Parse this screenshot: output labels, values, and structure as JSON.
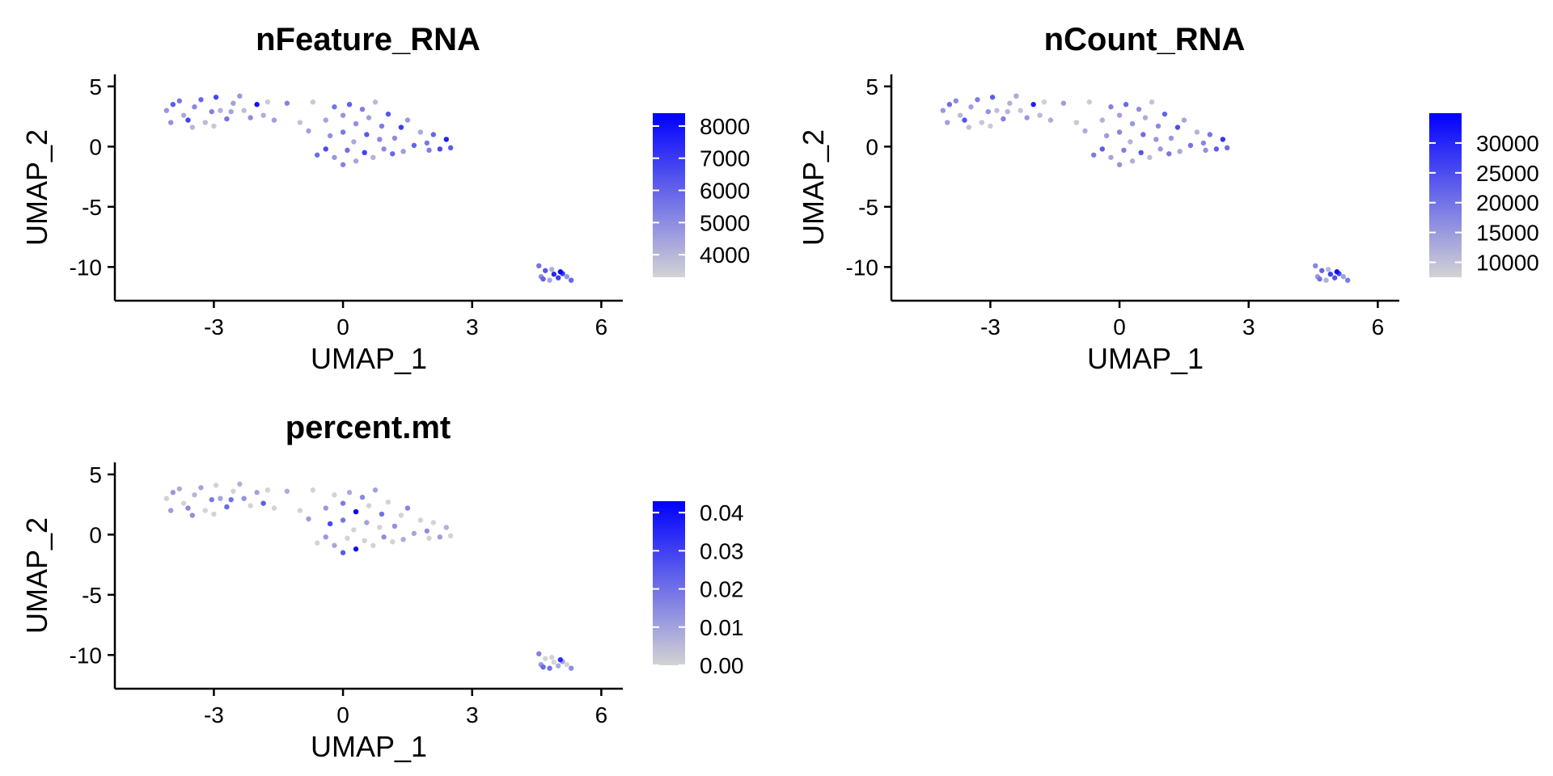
{
  "colors": {
    "low": "#d3d3d3",
    "high": "#0000ff",
    "axis": "#000000"
  },
  "chart_data": [
    {
      "type": "scatter",
      "title": "nFeature_RNA",
      "xlabel": "UMAP_1",
      "ylabel": "UMAP_2",
      "xlim": [
        -5.3,
        6.5
      ],
      "ylim": [
        -12.8,
        6.0
      ],
      "xticks": [
        -3,
        0,
        3,
        6
      ],
      "yticks": [
        5,
        0,
        -5,
        -10
      ],
      "grid": false,
      "legend": {
        "position": "right",
        "min": 3300,
        "max": 8400,
        "ticks": [
          4000,
          5000,
          6000,
          7000,
          8000
        ]
      },
      "points": [
        [
          -4.1,
          3.0,
          4800
        ],
        [
          -3.95,
          3.5,
          6200
        ],
        [
          -3.8,
          3.8,
          5500
        ],
        [
          -3.7,
          2.6,
          4300
        ],
        [
          -3.6,
          2.2,
          6800
        ],
        [
          -3.45,
          3.3,
          5100
        ],
        [
          -3.3,
          3.9,
          5900
        ],
        [
          -3.2,
          2.0,
          3900
        ],
        [
          -3.05,
          2.9,
          5300
        ],
        [
          -2.95,
          4.1,
          6700
        ],
        [
          -2.85,
          3.0,
          4100
        ],
        [
          -2.7,
          2.3,
          5600
        ],
        [
          -2.55,
          3.6,
          4500
        ],
        [
          -2.4,
          4.2,
          4700
        ],
        [
          -2.3,
          3.0,
          3800
        ],
        [
          -2.15,
          2.4,
          5000
        ],
        [
          -2.0,
          3.5,
          8000
        ],
        [
          -1.85,
          2.6,
          4200
        ],
        [
          -1.6,
          2.2,
          4600
        ],
        [
          -1.3,
          3.6,
          5200
        ],
        [
          -3.5,
          1.6,
          4000
        ],
        [
          -3.0,
          1.7,
          3600
        ],
        [
          -2.6,
          2.9,
          4400
        ],
        [
          -1.75,
          3.7,
          3500
        ],
        [
          -4.0,
          2.0,
          4900
        ],
        [
          -0.7,
          3.7,
          3600
        ],
        [
          -0.4,
          2.2,
          4400
        ],
        [
          -0.2,
          3.3,
          5600
        ],
        [
          0.0,
          2.6,
          4800
        ],
        [
          0.15,
          3.5,
          6100
        ],
        [
          0.3,
          1.9,
          4900
        ],
        [
          0.45,
          3.1,
          5300
        ],
        [
          0.6,
          2.4,
          4500
        ],
        [
          0.75,
          3.7,
          3900
        ],
        [
          0.9,
          1.7,
          5400
        ],
        [
          1.05,
          2.7,
          6300
        ],
        [
          1.2,
          0.7,
          5000
        ],
        [
          1.35,
          1.6,
          7000
        ],
        [
          1.5,
          2.2,
          4700
        ],
        [
          1.65,
          0.1,
          6000
        ],
        [
          1.8,
          1.2,
          4300
        ],
        [
          1.95,
          0.3,
          5500
        ],
        [
          2.1,
          1.0,
          5900
        ],
        [
          2.25,
          -0.2,
          6600
        ],
        [
          2.4,
          0.6,
          7600
        ],
        [
          2.5,
          -0.1,
          6200
        ],
        [
          -0.6,
          -0.7,
          5800
        ],
        [
          -0.4,
          -0.2,
          6600
        ],
        [
          -0.2,
          -0.9,
          4700
        ],
        [
          0.0,
          -1.5,
          5200
        ],
        [
          0.1,
          -0.3,
          5700
        ],
        [
          0.3,
          -1.2,
          4400
        ],
        [
          0.5,
          -0.5,
          6800
        ],
        [
          0.7,
          -0.9,
          4100
        ],
        [
          0.95,
          -0.2,
          5000
        ],
        [
          1.15,
          -0.6,
          5900
        ],
        [
          -0.3,
          0.9,
          4900
        ],
        [
          0.0,
          1.2,
          5500
        ],
        [
          0.25,
          0.4,
          4300
        ],
        [
          0.55,
          1.0,
          6200
        ],
        [
          0.85,
          0.6,
          5100
        ],
        [
          1.4,
          -0.4,
          4600
        ],
        [
          2.0,
          -0.3,
          5300
        ],
        [
          -1.0,
          2.0,
          3700
        ],
        [
          -0.8,
          1.3,
          4500
        ],
        [
          4.55,
          -9.9,
          5600
        ],
        [
          4.7,
          -10.3,
          6300
        ],
        [
          4.6,
          -10.8,
          5000
        ],
        [
          4.8,
          -11.1,
          4400
        ],
        [
          4.9,
          -10.6,
          7500
        ],
        [
          5.0,
          -10.9,
          6900
        ],
        [
          5.05,
          -10.4,
          8200
        ],
        [
          5.2,
          -10.8,
          4800
        ],
        [
          5.3,
          -11.1,
          5900
        ],
        [
          4.85,
          -10.2,
          4200
        ],
        [
          4.65,
          -11.0,
          6000
        ],
        [
          5.1,
          -10.55,
          7000
        ]
      ]
    },
    {
      "type": "scatter",
      "title": "nCount_RNA",
      "xlabel": "UMAP_1",
      "ylabel": "UMAP_2",
      "xlim": [
        -5.3,
        6.5
      ],
      "ylim": [
        -12.8,
        6.0
      ],
      "xticks": [
        -3,
        0,
        3,
        6
      ],
      "yticks": [
        5,
        0,
        -5,
        -10
      ],
      "grid": false,
      "legend": {
        "position": "right",
        "min": 7500,
        "max": 35000,
        "ticks": [
          10000,
          15000,
          20000,
          25000,
          30000
        ]
      },
      "points": [
        [
          -4.1,
          3.0,
          15000
        ],
        [
          -3.95,
          3.5,
          21000
        ],
        [
          -3.8,
          3.8,
          17000
        ],
        [
          -3.7,
          2.6,
          11000
        ],
        [
          -3.6,
          2.2,
          24000
        ],
        [
          -3.45,
          3.3,
          14000
        ],
        [
          -3.3,
          3.9,
          19000
        ],
        [
          -3.2,
          2.0,
          9000
        ],
        [
          -3.05,
          2.9,
          16000
        ],
        [
          -2.95,
          4.1,
          23000
        ],
        [
          -2.85,
          3.0,
          10000
        ],
        [
          -2.7,
          2.3,
          18000
        ],
        [
          -2.55,
          3.6,
          12000
        ],
        [
          -2.4,
          4.2,
          13000
        ],
        [
          -2.3,
          3.0,
          9500
        ],
        [
          -2.15,
          2.4,
          15000
        ],
        [
          -2.0,
          3.5,
          31000
        ],
        [
          -1.85,
          2.6,
          11000
        ],
        [
          -1.6,
          2.2,
          12500
        ],
        [
          -1.3,
          3.6,
          14500
        ],
        [
          -3.5,
          1.6,
          10000
        ],
        [
          -3.0,
          1.7,
          8500
        ],
        [
          -2.6,
          2.9,
          11500
        ],
        [
          -1.75,
          3.7,
          8000
        ],
        [
          -4.0,
          2.0,
          14000
        ],
        [
          -0.7,
          3.7,
          8500
        ],
        [
          -0.4,
          2.2,
          12000
        ],
        [
          -0.2,
          3.3,
          18000
        ],
        [
          0.0,
          2.6,
          14000
        ],
        [
          0.15,
          3.5,
          21000
        ],
        [
          0.3,
          1.9,
          15000
        ],
        [
          0.45,
          3.1,
          16500
        ],
        [
          0.6,
          2.4,
          12500
        ],
        [
          0.75,
          3.7,
          9500
        ],
        [
          0.9,
          1.7,
          17000
        ],
        [
          1.05,
          2.7,
          22000
        ],
        [
          1.2,
          0.7,
          15500
        ],
        [
          1.35,
          1.6,
          25000
        ],
        [
          1.5,
          2.2,
          13500
        ],
        [
          1.65,
          0.1,
          20000
        ],
        [
          1.8,
          1.2,
          11500
        ],
        [
          1.95,
          0.3,
          17500
        ],
        [
          2.1,
          1.0,
          19500
        ],
        [
          2.25,
          -0.2,
          23000
        ],
        [
          2.4,
          0.6,
          28000
        ],
        [
          2.5,
          -0.1,
          21000
        ],
        [
          -0.6,
          -0.7,
          19000
        ],
        [
          -0.4,
          -0.2,
          23000
        ],
        [
          -0.2,
          -0.9,
          13500
        ],
        [
          0.0,
          -1.5,
          16000
        ],
        [
          0.1,
          -0.3,
          18500
        ],
        [
          0.3,
          -1.2,
          12000
        ],
        [
          0.5,
          -0.5,
          24000
        ],
        [
          0.7,
          -0.9,
          10500
        ],
        [
          0.95,
          -0.2,
          15000
        ],
        [
          1.15,
          -0.6,
          19500
        ],
        [
          -0.3,
          0.9,
          14500
        ],
        [
          0.0,
          1.2,
          17500
        ],
        [
          0.25,
          0.4,
          11500
        ],
        [
          0.55,
          1.0,
          21000
        ],
        [
          0.85,
          0.6,
          15500
        ],
        [
          1.4,
          -0.4,
          13000
        ],
        [
          2.0,
          -0.3,
          16500
        ],
        [
          -1.0,
          2.0,
          9000
        ],
        [
          -0.8,
          1.3,
          12500
        ],
        [
          4.55,
          -9.9,
          17500
        ],
        [
          4.7,
          -10.3,
          22000
        ],
        [
          4.6,
          -10.8,
          15000
        ],
        [
          4.8,
          -11.1,
          12000
        ],
        [
          4.9,
          -10.6,
          27000
        ],
        [
          5.0,
          -10.9,
          24000
        ],
        [
          5.05,
          -10.4,
          33000
        ],
        [
          5.2,
          -10.8,
          14000
        ],
        [
          5.3,
          -11.1,
          19000
        ],
        [
          4.85,
          -10.2,
          11000
        ],
        [
          4.65,
          -11.0,
          20000
        ],
        [
          5.1,
          -10.55,
          25000
        ]
      ]
    },
    {
      "type": "scatter",
      "title": "percent.mt",
      "xlabel": "UMAP_1",
      "ylabel": "UMAP_2",
      "xlim": [
        -5.3,
        6.5
      ],
      "ylim": [
        -12.8,
        6.0
      ],
      "xticks": [
        -3,
        0,
        3,
        6
      ],
      "yticks": [
        5,
        0,
        -5,
        -10
      ],
      "grid": false,
      "legend": {
        "position": "right",
        "min": 0.0,
        "max": 0.043,
        "ticks": [
          "0.00",
          "0.01",
          "0.02",
          "0.03",
          "0.04"
        ]
      },
      "points": [
        [
          -4.1,
          3.0,
          0.0
        ],
        [
          -3.95,
          3.5,
          0.012
        ],
        [
          -3.8,
          3.8,
          0.008
        ],
        [
          -3.7,
          2.6,
          0.0
        ],
        [
          -3.6,
          2.2,
          0.015
        ],
        [
          -3.45,
          3.3,
          0.006
        ],
        [
          -3.3,
          3.9,
          0.01
        ],
        [
          -3.2,
          2.0,
          0.0
        ],
        [
          -3.05,
          2.9,
          0.018
        ],
        [
          -2.95,
          4.1,
          0.0
        ],
        [
          -2.85,
          3.0,
          0.009
        ],
        [
          -2.7,
          2.3,
          0.022
        ],
        [
          -2.55,
          3.6,
          0.0
        ],
        [
          -2.4,
          4.2,
          0.007
        ],
        [
          -2.3,
          3.0,
          0.013
        ],
        [
          -2.15,
          2.4,
          0.0
        ],
        [
          -2.0,
          3.5,
          0.01
        ],
        [
          -1.85,
          2.6,
          0.024
        ],
        [
          -1.6,
          2.2,
          0.0
        ],
        [
          -1.3,
          3.6,
          0.008
        ],
        [
          -3.5,
          1.6,
          0.014
        ],
        [
          -3.0,
          1.7,
          0.0
        ],
        [
          -2.6,
          2.9,
          0.02
        ],
        [
          -1.75,
          3.7,
          0.0
        ],
        [
          -4.0,
          2.0,
          0.011
        ],
        [
          -0.7,
          3.7,
          0.0
        ],
        [
          -0.4,
          2.2,
          0.012
        ],
        [
          -0.2,
          3.3,
          0.0
        ],
        [
          0.0,
          2.6,
          0.018
        ],
        [
          0.15,
          3.5,
          0.008
        ],
        [
          0.3,
          1.9,
          0.042
        ],
        [
          0.45,
          3.1,
          0.015
        ],
        [
          0.6,
          2.4,
          0.0
        ],
        [
          0.75,
          3.7,
          0.01
        ],
        [
          0.9,
          1.7,
          0.02
        ],
        [
          1.05,
          2.7,
          0.0
        ],
        [
          1.2,
          0.7,
          0.013
        ],
        [
          1.35,
          1.6,
          0.0
        ],
        [
          1.5,
          2.2,
          0.016
        ],
        [
          1.65,
          0.1,
          0.009
        ],
        [
          1.8,
          1.2,
          0.0
        ],
        [
          1.95,
          0.3,
          0.014
        ],
        [
          2.1,
          1.0,
          0.0
        ],
        [
          2.25,
          -0.2,
          0.011
        ],
        [
          2.4,
          0.6,
          0.007
        ],
        [
          2.5,
          -0.1,
          0.0
        ],
        [
          -0.6,
          -0.7,
          0.0
        ],
        [
          -0.4,
          -0.2,
          0.012
        ],
        [
          -0.2,
          -0.9,
          0.009
        ],
        [
          0.0,
          -1.5,
          0.025
        ],
        [
          0.1,
          -0.3,
          0.0
        ],
        [
          0.3,
          -1.2,
          0.04
        ],
        [
          0.5,
          -0.5,
          0.0
        ],
        [
          0.7,
          -0.9,
          0.0
        ],
        [
          0.95,
          -0.2,
          0.014
        ],
        [
          1.15,
          -0.6,
          0.0
        ],
        [
          -0.3,
          0.9,
          0.028
        ],
        [
          0.0,
          1.2,
          0.019
        ],
        [
          0.25,
          0.4,
          0.0
        ],
        [
          0.55,
          1.0,
          0.01
        ],
        [
          0.85,
          0.6,
          0.0
        ],
        [
          1.4,
          -0.4,
          0.008
        ],
        [
          2.0,
          -0.3,
          0.0
        ],
        [
          -1.0,
          2.0,
          0.0
        ],
        [
          -0.8,
          1.3,
          0.011
        ],
        [
          4.55,
          -9.9,
          0.016
        ],
        [
          4.7,
          -10.3,
          0.0
        ],
        [
          4.6,
          -10.8,
          0.012
        ],
        [
          4.8,
          -11.1,
          0.02
        ],
        [
          4.9,
          -10.6,
          0.0
        ],
        [
          5.0,
          -10.9,
          0.008
        ],
        [
          5.05,
          -10.4,
          0.034
        ],
        [
          5.2,
          -10.8,
          0.0
        ],
        [
          5.3,
          -11.1,
          0.014
        ],
        [
          4.85,
          -10.2,
          0.0
        ],
        [
          4.65,
          -11.0,
          0.022
        ],
        [
          5.1,
          -10.55,
          0.01
        ]
      ]
    }
  ]
}
